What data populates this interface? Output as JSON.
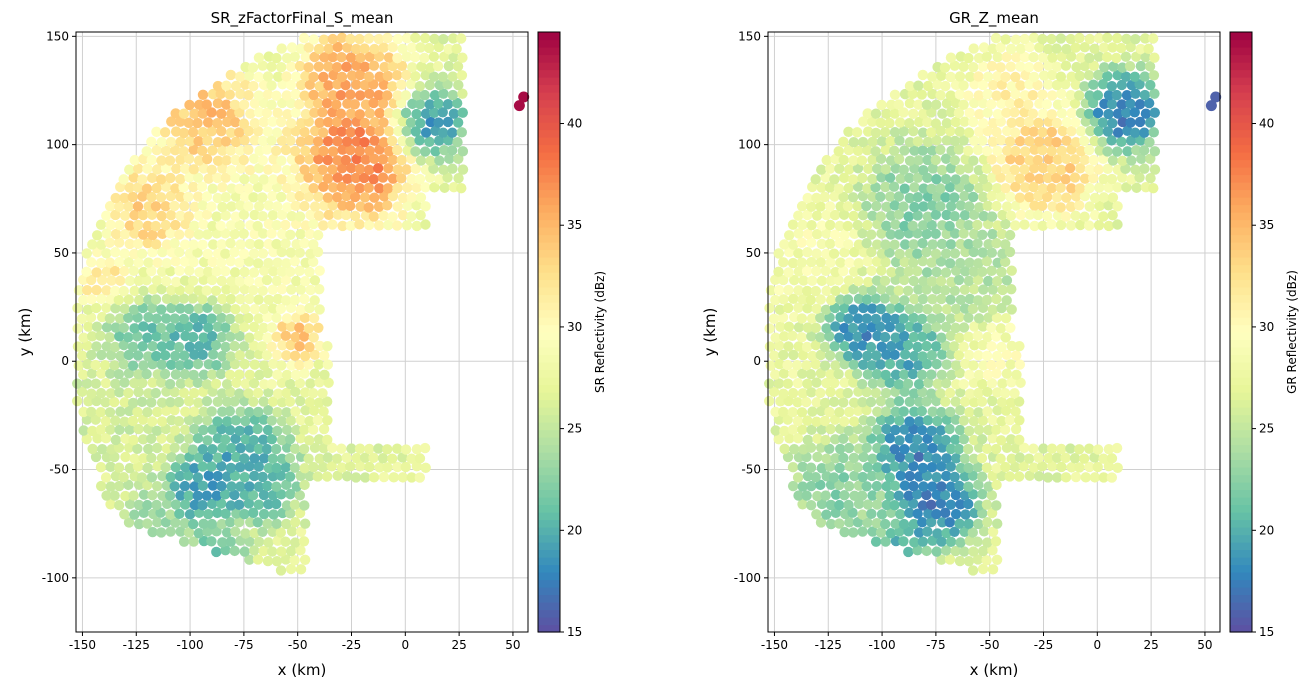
{
  "chart_data": [
    {
      "type": "scatter",
      "title": "SR_zFactorFinal_S_mean",
      "xlabel": "x (km)",
      "ylabel": "y (km)",
      "xlim": [
        -153,
        57
      ],
      "ylim": [
        -125,
        152
      ],
      "xticks": [
        -150,
        -125,
        -100,
        -75,
        -50,
        -25,
        0,
        25,
        50
      ],
      "yticks": [
        -100,
        -50,
        0,
        50,
        100,
        150
      ],
      "grid": true,
      "colorbar": {
        "label": "SR Reflectivity (dBz)",
        "ticks": [
          15,
          20,
          25,
          30,
          35,
          40
        ],
        "range": [
          15,
          44.5
        ],
        "colormap": "Spectral_r"
      },
      "outliers": [
        {
          "x": 53,
          "y": 118,
          "value": 44
        },
        {
          "x": 55,
          "y": 122,
          "value": 44
        }
      ],
      "field": [
        {
          "x": -28,
          "y": 90,
          "s": 14,
          "value": 41.5
        },
        {
          "x": -25,
          "y": 128,
          "s": 12,
          "value": 37.5
        },
        {
          "x": -90,
          "y": 108,
          "s": 12,
          "value": 36.5
        },
        {
          "x": -117,
          "y": 70,
          "s": 10,
          "value": 35.5
        },
        {
          "x": -140,
          "y": 38,
          "s": 6,
          "value": 33
        },
        {
          "x": -50,
          "y": 12,
          "s": 6,
          "value": 36.5
        },
        {
          "x": 12,
          "y": 110,
          "s": 8,
          "value": 17.5
        },
        {
          "x": -65,
          "y": 62,
          "s": 28,
          "value": 29
        },
        {
          "x": -118,
          "y": 10,
          "s": 10,
          "value": 20
        },
        {
          "x": -95,
          "y": 12,
          "s": 9,
          "value": 18
        },
        {
          "x": -130,
          "y": -25,
          "s": 15,
          "value": 26
        },
        {
          "x": -78,
          "y": -40,
          "s": 10,
          "value": 19
        },
        {
          "x": -95,
          "y": -58,
          "s": 9,
          "value": 18
        },
        {
          "x": -70,
          "y": -55,
          "s": 10,
          "value": 19
        },
        {
          "x": -90,
          "y": -100,
          "s": 9,
          "value": 18
        },
        {
          "x": -120,
          "y": -80,
          "s": 10,
          "value": 23
        }
      ],
      "base_value": 27
    },
    {
      "type": "scatter",
      "title": "GR_Z_mean",
      "xlabel": "x (km)",
      "ylabel": "y (km)",
      "xlim": [
        -153,
        57
      ],
      "ylim": [
        -125,
        152
      ],
      "xticks": [
        -150,
        -125,
        -100,
        -75,
        -50,
        -25,
        0,
        25,
        50
      ],
      "yticks": [
        -100,
        -50,
        0,
        50,
        100,
        150
      ],
      "grid": true,
      "colorbar": {
        "label": "GR Reflectivity (dBz)",
        "ticks": [
          15,
          20,
          25,
          30,
          35,
          40
        ],
        "range": [
          15,
          44.5
        ],
        "colormap": "Spectral_r"
      },
      "outliers": [
        {
          "x": 53,
          "y": 118,
          "value": 16
        },
        {
          "x": 55,
          "y": 122,
          "value": 16
        }
      ],
      "field": [
        {
          "x": -25,
          "y": 92,
          "s": 12,
          "value": 35
        },
        {
          "x": -40,
          "y": 122,
          "s": 10,
          "value": 31.5
        },
        {
          "x": 12,
          "y": 115,
          "s": 9,
          "value": 16
        },
        {
          "x": -80,
          "y": 70,
          "s": 14,
          "value": 21.5
        },
        {
          "x": -60,
          "y": 40,
          "s": 14,
          "value": 24
        },
        {
          "x": -110,
          "y": 15,
          "s": 9,
          "value": 16.5
        },
        {
          "x": -90,
          "y": 5,
          "s": 9,
          "value": 18
        },
        {
          "x": -85,
          "y": -40,
          "s": 10,
          "value": 16.5
        },
        {
          "x": -75,
          "y": -65,
          "s": 10,
          "value": 16
        },
        {
          "x": -100,
          "y": -100,
          "s": 10,
          "value": 16.5
        },
        {
          "x": -120,
          "y": -60,
          "s": 12,
          "value": 22
        },
        {
          "x": -140,
          "y": -10,
          "s": 12,
          "value": 27.5
        },
        {
          "x": -135,
          "y": 50,
          "s": 14,
          "value": 29
        },
        {
          "x": -45,
          "y": 5,
          "s": 9,
          "value": 29.5
        }
      ],
      "base_value": 27
    }
  ]
}
